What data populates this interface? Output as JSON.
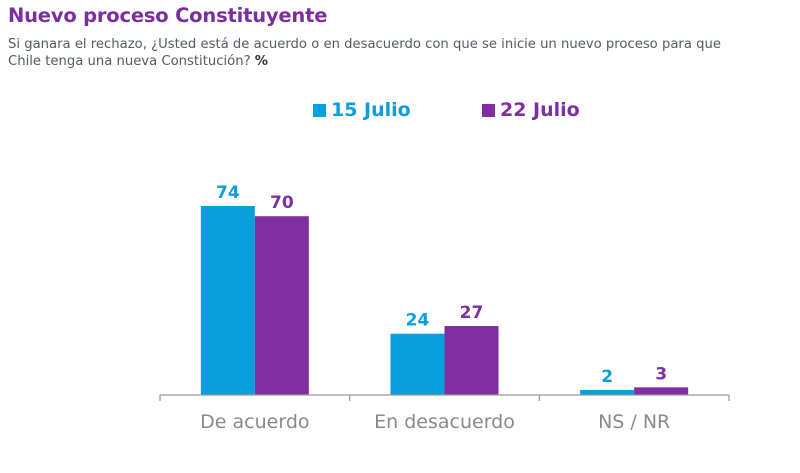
{
  "header": {
    "title": "Nuevo proceso Constituyente",
    "subtitle_line1": "Si ganara el rechazo, ¿Usted está de acuerdo o en desacuerdo con que se inicie un nuevo proceso para que",
    "subtitle_line2": "Chile tenga una nueva Constitución?",
    "subtitle_unit": "%"
  },
  "colors": {
    "title": "#7b2f9e",
    "series_1": "#0a9fdc",
    "series_2": "#7f2fa2",
    "axis": "#9a9a9a",
    "category_text": "#8a8a8a"
  },
  "chart_data": {
    "type": "bar",
    "title": "Nuevo proceso Constituyente",
    "subtitle": "Si ganara el rechazo, ¿Usted está de acuerdo o en desacuerdo con que se inicie un nuevo proceso para que Chile tenga una nueva Constitución? %",
    "categories": [
      "De acuerdo",
      "En desacuerdo",
      "NS / NR"
    ],
    "series": [
      {
        "name": "15 Julio",
        "values": [
          74,
          24,
          2
        ]
      },
      {
        "name": "22 Julio",
        "values": [
          70,
          27,
          3
        ]
      }
    ],
    "xlabel": "",
    "ylabel": "%",
    "ylim": [
      0,
      80
    ],
    "grid": false,
    "legend_position": "top-center",
    "data_labels": true
  }
}
